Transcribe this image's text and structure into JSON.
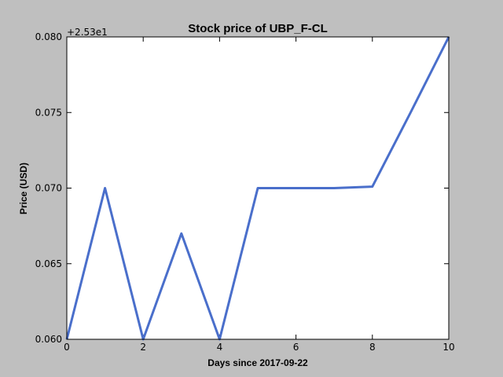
{
  "chart_data": {
    "type": "line",
    "title": "Stock price of UBP_F-CL",
    "xlabel": "Days since 2017-09-22",
    "ylabel": "Price (USD)",
    "y_offset_text": "+2.53e1",
    "x": [
      0,
      1,
      2,
      3,
      4,
      5,
      6,
      7,
      8,
      9,
      10
    ],
    "series": [
      {
        "name": "UBP_F-CL",
        "color": "#4a6fcb",
        "values": [
          0.06,
          0.07,
          0.06,
          0.067,
          0.06,
          0.07,
          0.07,
          0.07,
          0.0701,
          0.075,
          0.08
        ]
      }
    ],
    "xlim": [
      0,
      10
    ],
    "xticks": [
      0,
      2,
      4,
      6,
      8,
      10
    ],
    "ylim": [
      0.06,
      0.08
    ],
    "yticks": [
      {
        "value": 0.06,
        "label": "0.060"
      },
      {
        "value": 0.065,
        "label": "0.065"
      },
      {
        "value": 0.07,
        "label": "0.070"
      },
      {
        "value": 0.075,
        "label": "0.075"
      },
      {
        "value": 0.08,
        "label": "0.080"
      }
    ],
    "grid": false
  }
}
